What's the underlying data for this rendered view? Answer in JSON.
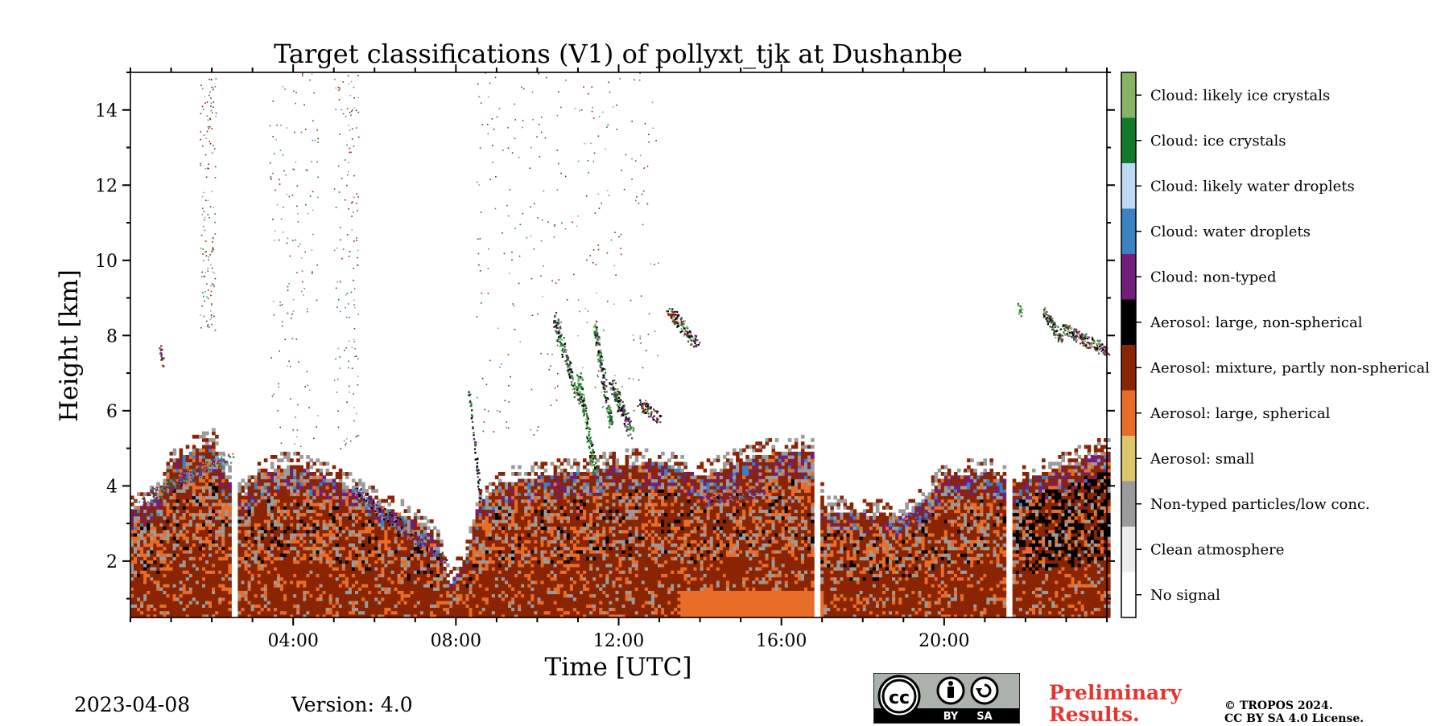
{
  "chart_data": {
    "type": "heatmap",
    "title": "Target classifications (V1) of pollyxt_tjk at Dushanbe",
    "xlabel": "Time [UTC]",
    "ylabel": "Height [km]",
    "xlim": [
      0,
      24
    ],
    "ylim": [
      0.5,
      15
    ],
    "xticks": [
      {
        "value": 4,
        "label": "04:00"
      },
      {
        "value": 8,
        "label": "08:00"
      },
      {
        "value": 12,
        "label": "12:00"
      },
      {
        "value": 16,
        "label": "16:00"
      },
      {
        "value": 20,
        "label": "20:00"
      }
    ],
    "yticks": [
      {
        "value": 2,
        "label": "2"
      },
      {
        "value": 4,
        "label": "4"
      },
      {
        "value": 6,
        "label": "6"
      },
      {
        "value": 8,
        "label": "8"
      },
      {
        "value": 10,
        "label": "10"
      },
      {
        "value": 12,
        "label": "12"
      },
      {
        "value": 14,
        "label": "14"
      }
    ],
    "data_gaps_hours": [
      [
        2.5,
        2.67
      ],
      [
        16.82,
        16.98
      ],
      [
        21.52,
        21.68
      ]
    ],
    "classes": [
      {
        "label": "Cloud: likely ice crystals",
        "color": "#87b464"
      },
      {
        "label": "Cloud: ice crystals",
        "color": "#137a2c"
      },
      {
        "label": "Cloud: likely water droplets",
        "color": "#bcdaf3"
      },
      {
        "label": "Cloud: water droplets",
        "color": "#3a82c2"
      },
      {
        "label": "Cloud: non-typed",
        "color": "#731e7d"
      },
      {
        "label": "Aerosol: large, non-spherical",
        "color": "#000000"
      },
      {
        "label": "Aerosol: mixture, partly non-spherical",
        "color": "#8a2402"
      },
      {
        "label": "Aerosol: large, spherical",
        "color": "#e86d28"
      },
      {
        "label": "Aerosol: small",
        "color": "#dcc56d"
      },
      {
        "label": "Non-typed particles/low conc.",
        "color": "#9b9b9b"
      },
      {
        "label": "Clean atmosphere",
        "color": "#ececec"
      },
      {
        "label": "No signal",
        "color": "#ffffff"
      }
    ]
  },
  "footer": {
    "date": "2023-04-08",
    "version": "Version: 4.0",
    "license_badge": {
      "cc": "cc",
      "by": "BY",
      "sa": "SA"
    },
    "preliminary_line1": "Preliminary",
    "preliminary_line2": "Results.",
    "copyright_line1": "© TROPOS 2024.",
    "copyright_line2": "CC BY SA 4.0 License."
  }
}
